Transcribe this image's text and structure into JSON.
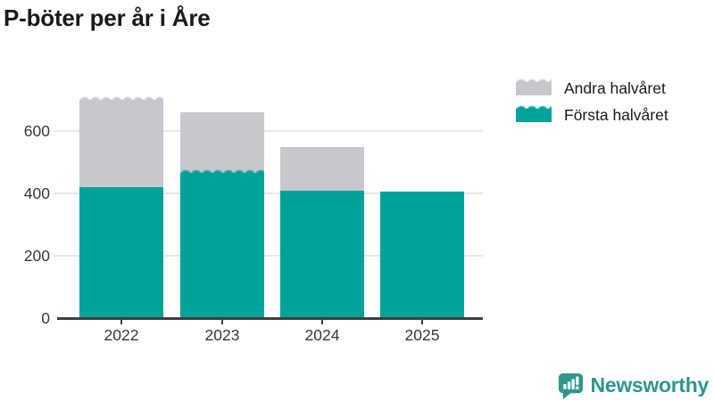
{
  "title": "P-böter per år i Åre",
  "chart_data": {
    "type": "bar",
    "stacked": true,
    "title": "P-böter per år i Åre",
    "categories": [
      "2022",
      "2023",
      "2024",
      "2025"
    ],
    "series": [
      {
        "name": "Första halvåret",
        "color": "#00a29a",
        "values": [
          420,
          465,
          410,
          405
        ],
        "fuzzy_top": [
          false,
          true,
          false,
          false
        ]
      },
      {
        "name": "Andra halvåret",
        "color": "#c8c7cd",
        "values": [
          280,
          195,
          140,
          0
        ],
        "fuzzy_top": [
          true,
          false,
          false,
          false
        ]
      }
    ],
    "totals": [
      700,
      660,
      550,
      405
    ],
    "xlabel": "",
    "ylabel": "",
    "y_ticks": [
      0,
      200,
      400,
      600
    ],
    "ylim": [
      0,
      760
    ],
    "grid": true,
    "legend_position": "top-right",
    "legend_order": [
      "Andra halvåret",
      "Första halvåret"
    ],
    "colors": {
      "axis": "#3f3f3f",
      "gridline": "#e7e7ea",
      "tick_label": "#383838",
      "title": "#1a1a1a"
    }
  },
  "branding": {
    "name": "Newsworthy",
    "color": "#2f968f"
  }
}
